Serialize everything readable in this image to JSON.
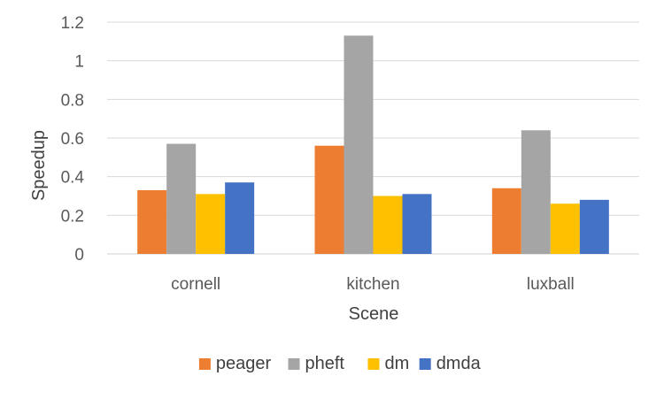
{
  "chart_data": {
    "type": "bar",
    "title": "",
    "xlabel": "Scene",
    "ylabel": "Speedup",
    "categories": [
      "cornell",
      "kitchen",
      "luxball"
    ],
    "series": [
      {
        "name": "peager",
        "color": "#ed7d31",
        "values": [
          0.33,
          0.56,
          0.34
        ]
      },
      {
        "name": "pheft",
        "color": "#a5a5a5",
        "values": [
          0.57,
          1.13,
          0.64
        ]
      },
      {
        "name": "dm",
        "color": "#ffc000",
        "values": [
          0.31,
          0.3,
          0.26
        ]
      },
      {
        "name": "dmda",
        "color": "#4472c4",
        "values": [
          0.37,
          0.31,
          0.28
        ]
      }
    ],
    "ylim": [
      0,
      1.2
    ],
    "yticks": [
      0,
      0.2,
      0.4,
      0.6,
      0.8,
      1,
      1.2
    ],
    "ytick_labels": [
      "0",
      "0.2",
      "0.4",
      "0.6",
      "0.8",
      "1",
      "1.2"
    ],
    "grid": true,
    "legend_position": "bottom"
  }
}
